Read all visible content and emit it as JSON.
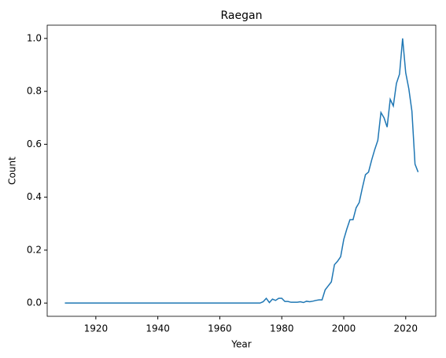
{
  "chart_data": {
    "type": "line",
    "title": "Raegan",
    "xlabel": "Year",
    "ylabel": "Count",
    "x": [
      1910,
      1911,
      1912,
      1913,
      1914,
      1915,
      1916,
      1917,
      1918,
      1919,
      1920,
      1921,
      1922,
      1923,
      1924,
      1925,
      1926,
      1927,
      1928,
      1929,
      1930,
      1931,
      1932,
      1933,
      1934,
      1935,
      1936,
      1937,
      1938,
      1939,
      1940,
      1941,
      1942,
      1943,
      1944,
      1945,
      1946,
      1947,
      1948,
      1949,
      1950,
      1951,
      1952,
      1953,
      1954,
      1955,
      1956,
      1957,
      1958,
      1959,
      1960,
      1961,
      1962,
      1963,
      1964,
      1965,
      1966,
      1967,
      1968,
      1969,
      1970,
      1971,
      1972,
      1973,
      1974,
      1975,
      1976,
      1977,
      1978,
      1979,
      1980,
      1981,
      1982,
      1983,
      1984,
      1985,
      1986,
      1987,
      1988,
      1989,
      1990,
      1991,
      1992,
      1993,
      1994,
      1995,
      1996,
      1997,
      1998,
      1999,
      2000,
      2001,
      2002,
      2003,
      2004,
      2005,
      2006,
      2007,
      2008,
      2009,
      2010,
      2011,
      2012,
      2013,
      2014,
      2015,
      2016,
      2017,
      2018,
      2019,
      2020,
      2021,
      2022,
      2023,
      2024
    ],
    "series": [
      {
        "name": "Raegan",
        "color": "#1f77b4",
        "values": [
          0,
          0,
          0,
          0,
          0,
          0,
          0,
          0,
          0,
          0,
          0,
          0,
          0,
          0,
          0,
          0,
          0,
          0,
          0,
          0,
          0,
          0,
          0,
          0,
          0,
          0,
          0,
          0,
          0,
          0,
          0,
          0,
          0,
          0,
          0,
          0,
          0,
          0,
          0,
          0,
          0,
          0,
          0,
          0,
          0,
          0,
          0,
          0,
          0,
          0,
          0,
          0,
          0,
          0,
          0,
          0,
          0,
          0,
          0,
          0,
          0,
          0,
          0,
          0,
          0.005,
          0.018,
          0.002,
          0.015,
          0.01,
          0.018,
          0.018,
          0.006,
          0.006,
          0.003,
          0.003,
          0.003,
          0.005,
          0.002,
          0.007,
          0.005,
          0.007,
          0.01,
          0.012,
          0.012,
          0.05,
          0.065,
          0.08,
          0.145,
          0.158,
          0.175,
          0.24,
          0.28,
          0.315,
          0.315,
          0.36,
          0.38,
          0.435,
          0.485,
          0.495,
          0.54,
          0.58,
          0.615,
          0.72,
          0.7,
          0.665,
          0.77,
          0.745,
          0.83,
          0.865,
          1.0,
          0.87,
          0.81,
          0.725,
          0.525,
          0.495
        ]
      }
    ],
    "xlim": [
      1904.3,
      2029.7
    ],
    "ylim": [
      -0.05,
      1.05
    ],
    "xticks": [
      1920,
      1940,
      1960,
      1980,
      2000,
      2020
    ],
    "yticks": [
      {
        "value": 0,
        "label": "0.0"
      },
      {
        "value": 0.2,
        "label": "0.2"
      },
      {
        "value": 0.4,
        "label": "0.4"
      },
      {
        "value": 0.6,
        "label": "0.6"
      },
      {
        "value": 0.8,
        "label": "0.8"
      },
      {
        "value": 1,
        "label": "1.0"
      }
    ]
  }
}
